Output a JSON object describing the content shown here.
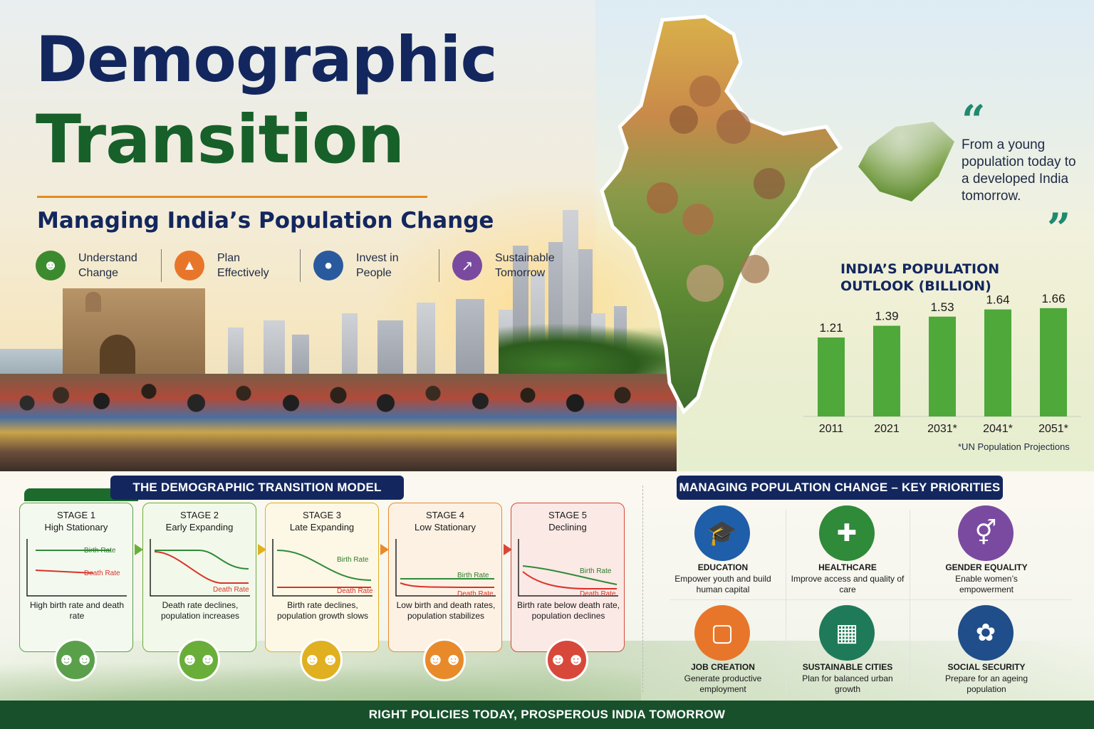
{
  "header": {
    "title_line1": "Demographic",
    "title_line2": "Transition",
    "subtitle": "Managing India’s Population Change"
  },
  "pillars": [
    {
      "label": "Understand Change",
      "icon": "people-icon",
      "color": "#3c8a2e"
    },
    {
      "label": "Plan Effectively",
      "icon": "growth-chart-icon",
      "color": "#e8762a"
    },
    {
      "label": "Invest in People",
      "icon": "group-icon",
      "color": "#2a5a9e"
    },
    {
      "label": "Sustainable Tomorrow",
      "icon": "trend-up-icon",
      "color": "#7a4aa0"
    }
  ],
  "quote": {
    "open": "“",
    "text": "From a young population today to a developed India tomorrow.",
    "close": "”"
  },
  "chart_data": {
    "type": "bar",
    "title": "INDIA’S POPULATION OUTLOOK (BILLION)",
    "categories": [
      "2011",
      "2021",
      "2031*",
      "2041*",
      "2051*"
    ],
    "values": [
      1.21,
      1.39,
      1.53,
      1.64,
      1.66
    ],
    "ylim": [
      0,
      1.8
    ],
    "bar_color": "#4ea83a",
    "note": "*UN Population Projections"
  },
  "model": {
    "heading": "THE DEMOGRAPHIC TRANSITION MODEL",
    "stages": [
      {
        "stage": "STAGE 1",
        "name": "High Stationary",
        "desc": "High birth rate and death rate",
        "color": "#5aa04a",
        "bg": "#f4f9ef",
        "birth_label": "Birth Rate",
        "death_label": "Death Rate"
      },
      {
        "stage": "STAGE 2",
        "name": "Early Expanding",
        "desc": "Death rate declines, population increases",
        "color": "#6aae3a",
        "bg": "#f3f9ea",
        "birth_label": "",
        "death_label": "Death Rate"
      },
      {
        "stage": "STAGE 3",
        "name": "Late Expanding",
        "desc": "Birth rate declines, population growth slows",
        "color": "#e0b020",
        "bg": "#fdf8e6",
        "birth_label": "Birth Rate",
        "death_label": "Death Rate"
      },
      {
        "stage": "STAGE 4",
        "name": "Low Stationary",
        "desc": "Low birth and death rates, population stabilizes",
        "color": "#e88a2a",
        "bg": "#fdf1e4",
        "birth_label": "Birth Rate",
        "death_label": "Death Rate"
      },
      {
        "stage": "STAGE 5",
        "name": "Declining",
        "desc": "Birth rate below death rate, population declines",
        "color": "#d8483a",
        "bg": "#fbe9e5",
        "birth_label": "Birth Rate",
        "death_label": "Death Rate"
      }
    ]
  },
  "priorities": {
    "heading": "MANAGING POPULATION CHANGE – KEY PRIORITIES",
    "items": [
      {
        "title": "EDUCATION",
        "desc": "Empower youth and build human capital",
        "icon": "graduation-cap-icon",
        "color": "#1f5ea8"
      },
      {
        "title": "HEALTHCARE",
        "desc": "Improve access and quality of care",
        "icon": "medical-kit-icon",
        "color": "#2f8a3a"
      },
      {
        "title": "GENDER EQUALITY",
        "desc": "Enable women’s empowerment",
        "icon": "gender-symbol-icon",
        "color": "#7a4aa0"
      },
      {
        "title": "JOB CREATION",
        "desc": "Generate productive employment",
        "icon": "briefcase-icon",
        "color": "#e8762a"
      },
      {
        "title": "SUSTAINABLE CITIES",
        "desc": "Plan for balanced urban growth",
        "icon": "city-icon",
        "color": "#1f7a5a"
      },
      {
        "title": "SOCIAL SECURITY",
        "desc": "Prepare for an ageing population",
        "icon": "caring-hands-icon",
        "color": "#1f4e8a"
      }
    ]
  },
  "footer": {
    "text": "RIGHT POLICIES TODAY, PROSPEROUS INDIA TOMORROW"
  }
}
